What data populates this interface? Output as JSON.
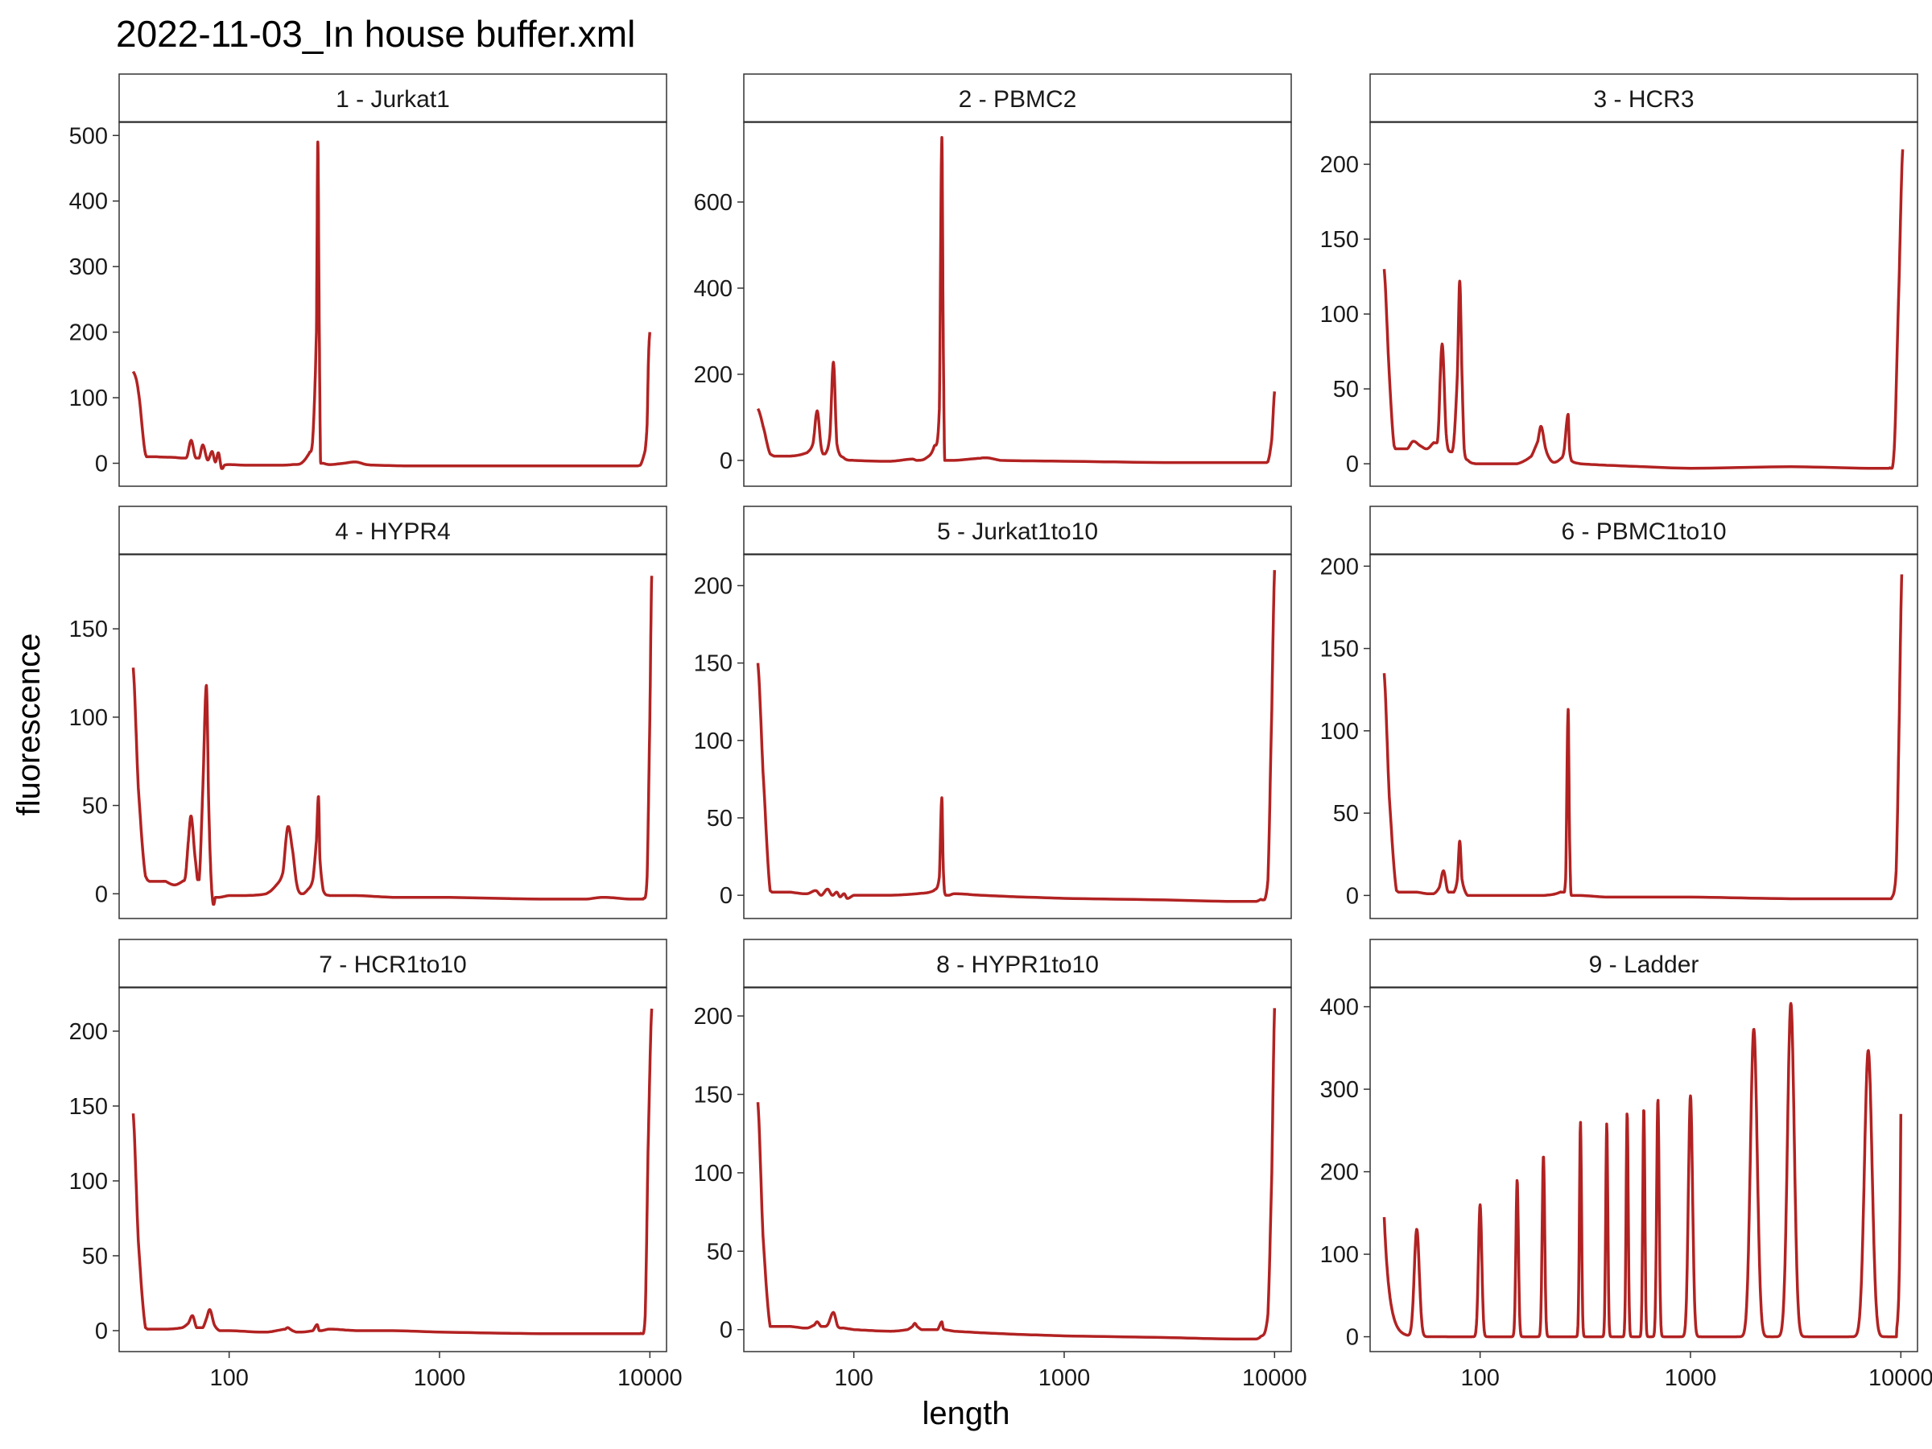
{
  "chart_data": {
    "type": "line",
    "title": "2022-11-03_In house buffer.xml",
    "xlabel": "length",
    "ylabel": "fluorescence",
    "x_scale": "log10",
    "xlim": [
      30,
      12000
    ],
    "x_ticks": [
      100,
      1000,
      10000
    ],
    "x_tick_labels": [
      "100",
      "1000",
      "10000"
    ],
    "line_color": "#b22222",
    "facets": [
      {
        "label": "1 - Jurkat1",
        "ylim": [
          -35,
          520
        ],
        "y_ticks": [
          0,
          100,
          200,
          300,
          400,
          500
        ],
        "x": [
          35,
          37,
          40,
          45,
          55,
          60,
          63,
          66,
          69,
          72,
          75,
          79,
          83,
          86,
          89,
          92,
          95,
          100,
          120,
          150,
          180,
          200,
          220,
          240,
          250,
          260,
          264,
          268,
          272,
          280,
          300,
          350,
          400,
          450,
          500,
          700,
          1000,
          2000,
          3000,
          5000,
          7000,
          9000,
          9500,
          9700,
          9850,
          10000
        ],
        "y": [
          140,
          110,
          14,
          10,
          9,
          8,
          10,
          35,
          10,
          8,
          28,
          5,
          18,
          2,
          16,
          -8,
          -3,
          -2,
          -3,
          -3,
          -3,
          -2,
          0,
          15,
          40,
          200,
          490,
          220,
          3,
          0,
          -2,
          0,
          2,
          -2,
          -3,
          -4,
          -4,
          -4,
          -4,
          -4,
          -4,
          -3,
          20,
          60,
          160,
          200
        ]
      },
      {
        "label": "2 - PBMC2",
        "ylim": [
          -60,
          785
        ],
        "y_ticks": [
          0,
          200,
          400,
          600
        ],
        "x": [
          35,
          37,
          40,
          50,
          60,
          64,
          67,
          70,
          73,
          77,
          80,
          83,
          90,
          100,
          150,
          190,
          200,
          220,
          240,
          255,
          262,
          266,
          270,
          275,
          300,
          400,
          430,
          500,
          1000,
          3000,
          8000,
          9300,
          9700,
          10000
        ],
        "y": [
          120,
          80,
          15,
          10,
          18,
          40,
          115,
          30,
          15,
          60,
          228,
          40,
          5,
          0,
          -2,
          3,
          0,
          5,
          30,
          120,
          750,
          300,
          10,
          0,
          0,
          5,
          6,
          0,
          -2,
          -5,
          -5,
          -3,
          50,
          160
        ]
      },
      {
        "label": "3 - HCR3",
        "ylim": [
          -15,
          228
        ],
        "y_ticks": [
          0,
          50,
          100,
          150,
          200
        ],
        "x": [
          35,
          37,
          39,
          45,
          48,
          52,
          56,
          60,
          63,
          66,
          69,
          72,
          75,
          78,
          80,
          82,
          84,
          88,
          95,
          110,
          150,
          175,
          188,
          195,
          205,
          215,
          225,
          240,
          250,
          262,
          266,
          272,
          300,
          400,
          600,
          1000,
          3000,
          7000,
          8800,
          9300,
          9800,
          10200
        ],
        "y": [
          130,
          60,
          12,
          10,
          15,
          12,
          10,
          14,
          18,
          80,
          20,
          8,
          15,
          60,
          122,
          60,
          10,
          2,
          0,
          0,
          0,
          5,
          15,
          25,
          10,
          3,
          1,
          3,
          8,
          33,
          10,
          2,
          0,
          -1,
          -2,
          -3,
          -2,
          -3,
          -3,
          10,
          120,
          210
        ]
      },
      {
        "label": "4 - HYPR4",
        "ylim": [
          -14,
          192
        ],
        "y_ticks": [
          0,
          50,
          100,
          150
        ],
        "x": [
          35,
          37,
          40,
          50,
          55,
          60,
          62,
          64,
          66,
          69,
          72,
          75,
          78,
          80,
          82,
          84,
          86,
          90,
          100,
          120,
          150,
          165,
          180,
          190,
          200,
          210,
          220,
          235,
          250,
          260,
          266,
          270,
          280,
          300,
          400,
          600,
          1000,
          3000,
          5000,
          6000,
          8000,
          9300,
          9700,
          10000,
          10200
        ],
        "y": [
          128,
          60,
          10,
          7,
          5,
          7,
          10,
          30,
          44,
          20,
          8,
          60,
          118,
          50,
          10,
          -6,
          -2,
          -2,
          -1,
          -1,
          0,
          4,
          12,
          38,
          25,
          5,
          0,
          2,
          8,
          30,
          55,
          20,
          2,
          -1,
          -1,
          -2,
          -2,
          -3,
          -3,
          -2,
          -3,
          -3,
          10,
          100,
          180
        ]
      },
      {
        "label": "5 - Jurkat1to10",
        "ylim": [
          -15,
          220
        ],
        "y_ticks": [
          0,
          50,
          100,
          150,
          200
        ],
        "x": [
          35,
          37,
          40,
          50,
          60,
          66,
          70,
          75,
          79,
          83,
          86,
          90,
          93,
          100,
          150,
          200,
          240,
          255,
          262,
          266,
          270,
          280,
          300,
          400,
          600,
          1000,
          3000,
          7000,
          8500,
          9300,
          9700,
          10000
        ],
        "y": [
          150,
          80,
          3,
          2,
          1,
          3,
          0,
          4,
          0,
          2,
          -1,
          1,
          -2,
          0,
          0,
          1,
          3,
          12,
          63,
          20,
          2,
          0,
          1,
          0,
          -1,
          -2,
          -3,
          -4,
          -3,
          10,
          120,
          210
        ]
      },
      {
        "label": "6 - PBMC1to10",
        "ylim": [
          -14,
          207
        ],
        "y_ticks": [
          0,
          50,
          100,
          150,
          200
        ],
        "x": [
          35,
          37,
          40,
          50,
          60,
          64,
          67,
          70,
          75,
          78,
          80,
          82,
          86,
          90,
          100,
          150,
          200,
          240,
          255,
          262,
          266,
          270,
          280,
          300,
          400,
          600,
          1000,
          3000,
          7000,
          9000,
          9500,
          9800,
          10100
        ],
        "y": [
          135,
          60,
          3,
          2,
          1,
          5,
          15,
          3,
          2,
          10,
          33,
          10,
          1,
          0,
          0,
          0,
          0,
          2,
          10,
          113,
          40,
          2,
          0,
          0,
          -1,
          -1,
          -1,
          -2,
          -2,
          -2,
          15,
          100,
          195
        ]
      },
      {
        "label": "7 - HCR1to10",
        "ylim": [
          -14,
          229
        ],
        "y_ticks": [
          0,
          50,
          100,
          150,
          200
        ],
        "x": [
          35,
          37,
          40,
          50,
          60,
          64,
          67,
          70,
          75,
          78,
          81,
          85,
          90,
          100,
          150,
          185,
          190,
          195,
          200,
          210,
          250,
          262,
          268,
          275,
          300,
          400,
          600,
          1000,
          3000,
          7000,
          9000,
          9500,
          9800,
          10200
        ],
        "y": [
          145,
          60,
          2,
          1,
          2,
          5,
          10,
          2,
          2,
          8,
          14,
          4,
          0,
          0,
          -1,
          1,
          2,
          1,
          0,
          -1,
          0,
          4,
          0,
          0,
          1,
          0,
          0,
          -1,
          -2,
          -2,
          -2,
          10,
          120,
          215
        ]
      },
      {
        "label": "8 - HYPR1to10",
        "ylim": [
          -14,
          218
        ],
        "y_ticks": [
          0,
          50,
          100,
          150,
          200
        ],
        "x": [
          35,
          37,
          40,
          50,
          60,
          65,
          67,
          70,
          75,
          80,
          84,
          90,
          100,
          150,
          180,
          190,
          195,
          200,
          210,
          250,
          262,
          266,
          270,
          300,
          400,
          600,
          1000,
          3000,
          7000,
          8500,
          9300,
          9700,
          10000
        ],
        "y": [
          145,
          60,
          2,
          2,
          1,
          3,
          5,
          2,
          3,
          11,
          2,
          1,
          0,
          -1,
          0,
          2,
          4,
          2,
          0,
          0,
          5,
          1,
          0,
          -1,
          -2,
          -3,
          -4,
          -5,
          -6,
          -5,
          10,
          100,
          205
        ]
      },
      {
        "label": "9 - Ladder",
        "ylim": [
          -18,
          423
        ],
        "y_ticks": [
          0,
          100,
          200,
          300,
          400
        ],
        "x": [
          35,
          37,
          40,
          50,
          100,
          150,
          200,
          300,
          400,
          500,
          600,
          700,
          1000,
          2000,
          3000,
          7000,
          8000,
          9000,
          9500,
          10000
        ],
        "y": [
          145,
          70,
          5,
          130,
          160,
          190,
          220,
          260,
          258,
          272,
          278,
          288,
          292,
          373,
          404,
          347,
          20,
          5,
          0,
          270
        ],
        "peak_widths": [
          0,
          0,
          0,
          0.012,
          0.008,
          0.006,
          0.006,
          0.005,
          0.005,
          0.005,
          0.005,
          0.006,
          0.01,
          0.016,
          0.016,
          0.018,
          0,
          0,
          0,
          0
        ]
      }
    ]
  }
}
